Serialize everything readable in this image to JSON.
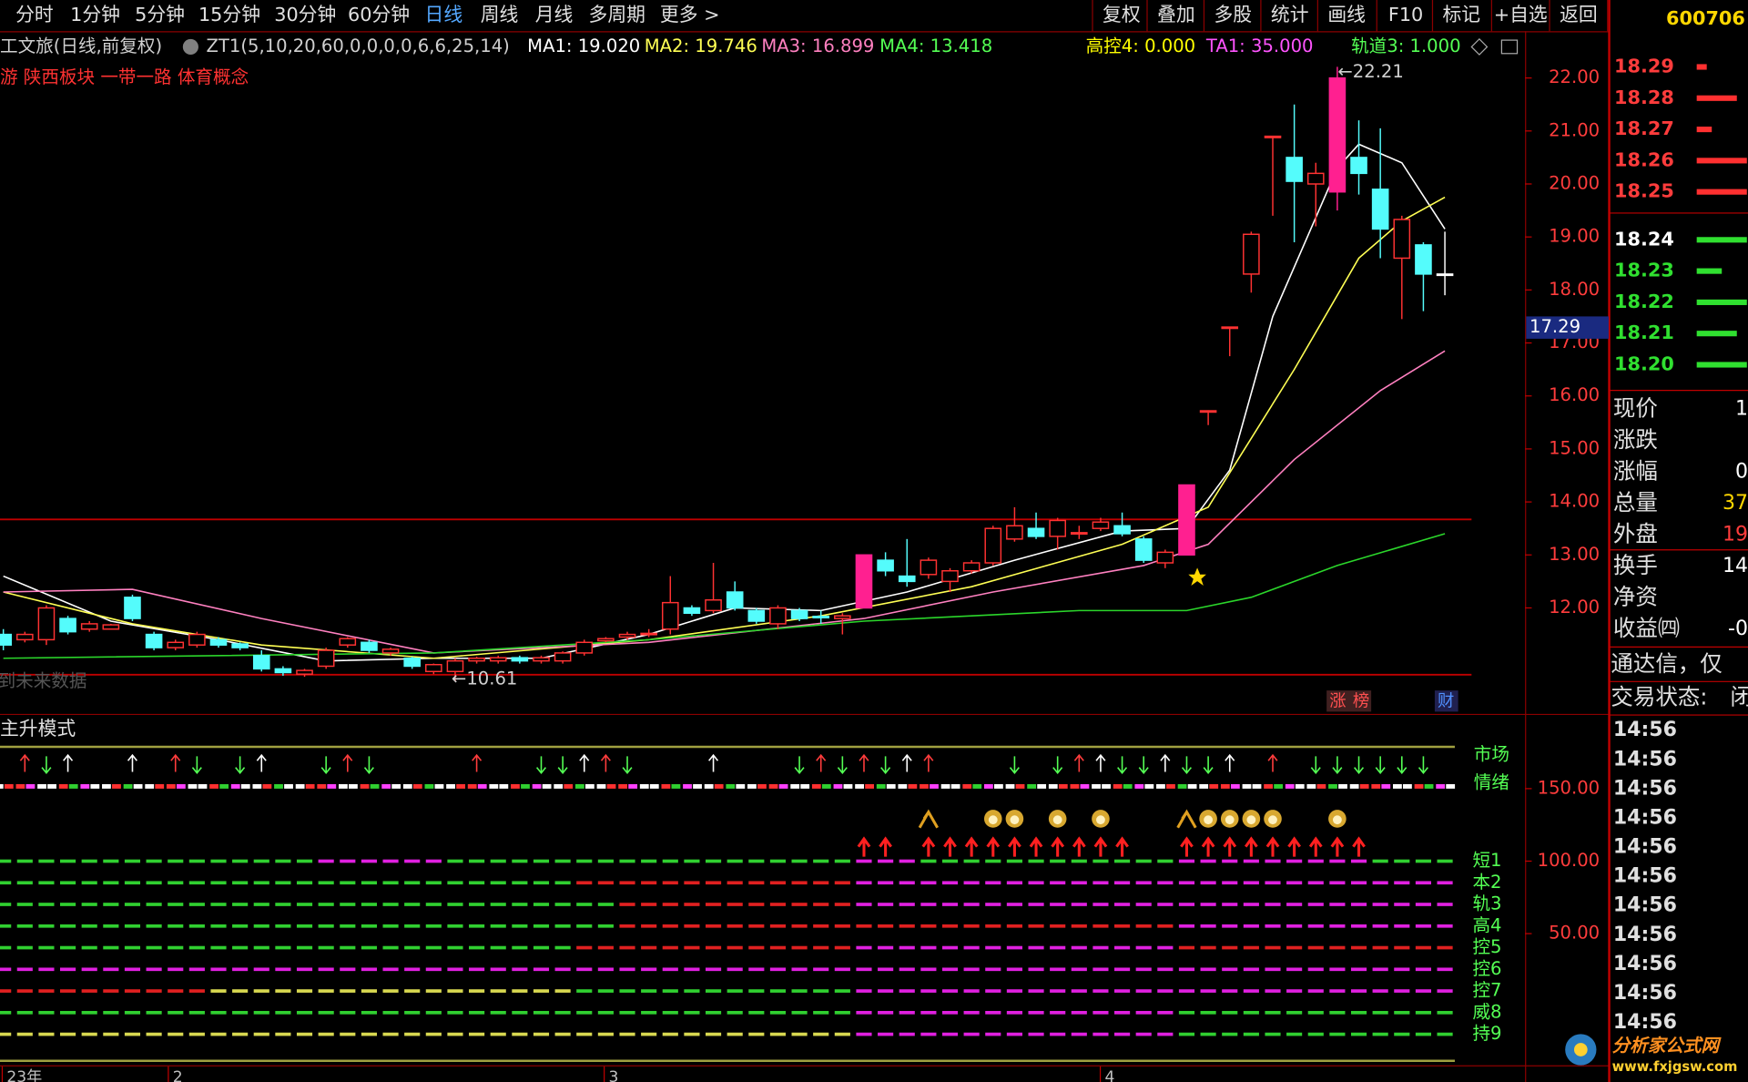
{
  "toolbar": {
    "left": [
      "分时",
      "1分钟",
      "5分钟",
      "15分钟",
      "30分钟",
      "60分钟",
      "日线",
      "周线",
      "月线",
      "多周期",
      "更多 >"
    ],
    "right": [
      "复权",
      "叠加",
      "多股",
      "统计",
      "画线",
      "F10",
      "标记",
      "+自选",
      "返回"
    ],
    "code": "600706"
  },
  "info": {
    "name": "工文旅(日线,前复权)",
    "formula": "ZT1(5,10,20,60,0,0,0,0,6,6,25,14)",
    "indicators": [
      {
        "label": "MA1: 19.020",
        "color": "#ffffff"
      },
      {
        "label": "MA2: 19.746",
        "color": "#ffff54"
      },
      {
        "label": "MA3: 16.899",
        "color": "#ff80c0"
      },
      {
        "label": "MA4: 13.418",
        "color": "#54ff54"
      },
      {
        "label": "高控4: 0.000",
        "color": "#ffff00"
      },
      {
        "label": "TA1: 35.000",
        "color": "#ff54ff"
      },
      {
        "label": "轨道3: 1.000",
        "color": "#54ff54"
      }
    ],
    "tags": "游 陕西板块 一带一路 体育概念"
  },
  "price_chart": {
    "ylim": [
      10.0,
      22.84
    ],
    "yticks": [
      {
        "value": 12,
        "label": "12.00"
      },
      {
        "value": 13,
        "label": "13.00"
      },
      {
        "value": 14,
        "label": "14.00"
      },
      {
        "value": 15,
        "label": "15.00"
      },
      {
        "value": 16,
        "label": "16.00"
      },
      {
        "value": 17,
        "label": "17.00"
      },
      {
        "value": 18,
        "label": "18.00"
      },
      {
        "value": 19,
        "label": "19.00"
      },
      {
        "value": 20,
        "label": "20.00"
      },
      {
        "value": 21,
        "label": "21.00"
      },
      {
        "value": 22,
        "label": "22.00"
      }
    ],
    "up_color": "#ff3232",
    "down_color": "#54fcfc",
    "candles": {
      "open": [
        11.5,
        11.4,
        11.4,
        11.8,
        11.6,
        11.6,
        12.2,
        11.5,
        11.25,
        11.3,
        11.4,
        11.32,
        11.1,
        10.85,
        10.75,
        10.9,
        11.3,
        11.35,
        11.15,
        11.05,
        10.8,
        10.8,
        11.0,
        11.0,
        11.06,
        11.0,
        11.0,
        11.15,
        11.38,
        11.45,
        11.5,
        11.6,
        12.0,
        11.95,
        12.3,
        11.95,
        11.7,
        11.95,
        11.84,
        11.8,
        12.0,
        12.9,
        12.6,
        12.63,
        12.5,
        12.7,
        12.85,
        13.3,
        13.5,
        13.35,
        13.4,
        13.5,
        13.55,
        13.3,
        12.85,
        13.0,
        15.72,
        17.3,
        18.3,
        20.9,
        20.5,
        20.0,
        19.85,
        20.5,
        19.9,
        18.6,
        18.85,
        18.3
      ],
      "high": [
        11.6,
        11.55,
        12.05,
        11.85,
        11.75,
        11.7,
        12.25,
        11.55,
        11.4,
        11.55,
        11.45,
        11.35,
        11.2,
        10.9,
        10.85,
        11.25,
        11.45,
        11.4,
        11.25,
        11.08,
        10.95,
        11.05,
        11.08,
        11.1,
        11.1,
        11.1,
        11.18,
        11.4,
        11.45,
        11.55,
        11.6,
        12.6,
        12.05,
        12.85,
        12.5,
        12.0,
        12.05,
        12.0,
        11.95,
        11.9,
        13.0,
        13.05,
        13.3,
        12.95,
        12.75,
        12.9,
        13.55,
        13.9,
        13.8,
        13.7,
        13.55,
        13.7,
        13.8,
        13.35,
        13.1,
        14.32,
        15.73,
        17.3,
        19.1,
        20.9,
        21.5,
        20.4,
        22.21,
        21.2,
        21.05,
        19.4,
        18.9,
        19.1
      ],
      "low": [
        11.2,
        11.35,
        11.3,
        11.5,
        11.55,
        11.6,
        11.75,
        11.2,
        11.2,
        11.25,
        11.25,
        11.2,
        10.8,
        10.72,
        10.7,
        10.85,
        11.25,
        11.15,
        11.1,
        10.85,
        10.75,
        10.61,
        10.95,
        10.95,
        10.95,
        10.95,
        10.95,
        11.1,
        11.35,
        11.4,
        11.45,
        11.5,
        11.85,
        11.9,
        11.95,
        11.7,
        11.6,
        11.75,
        11.7,
        11.5,
        12.0,
        12.6,
        12.4,
        12.55,
        12.3,
        12.65,
        12.8,
        13.25,
        13.3,
        13.1,
        13.3,
        13.45,
        13.35,
        12.85,
        12.75,
        13.0,
        15.45,
        16.75,
        17.95,
        19.4,
        18.9,
        19.2,
        19.5,
        19.8,
        18.6,
        17.45,
        17.6,
        17.9
      ],
      "close": [
        11.3,
        11.5,
        12.0,
        11.55,
        11.7,
        11.68,
        11.8,
        11.25,
        11.35,
        11.5,
        11.3,
        11.25,
        10.85,
        10.78,
        10.82,
        11.2,
        11.42,
        11.2,
        11.22,
        10.9,
        10.93,
        11.0,
        11.05,
        11.06,
        11.0,
        11.06,
        11.15,
        11.35,
        11.42,
        11.5,
        11.52,
        12.1,
        11.9,
        12.15,
        12.0,
        11.75,
        12.0,
        11.8,
        11.83,
        11.85,
        13.0,
        12.7,
        12.5,
        12.9,
        12.7,
        12.85,
        13.5,
        13.55,
        13.35,
        13.65,
        13.42,
        13.62,
        13.4,
        12.9,
        13.05,
        14.32,
        15.72,
        17.3,
        19.05,
        20.9,
        20.05,
        20.2,
        22.0,
        20.2,
        19.15,
        19.33,
        18.3,
        18.3
      ]
    },
    "ma": [
      {
        "color": "#ffffff",
        "x": [
          0,
          5,
          10,
          15,
          20,
          25,
          30,
          34,
          38,
          42,
          47,
          52,
          55,
          57,
          59,
          62,
          63,
          65,
          67
        ],
        "values": [
          12.6,
          11.75,
          11.4,
          11.0,
          11.05,
          11.05,
          11.5,
          12.0,
          11.95,
          12.3,
          12.9,
          13.45,
          13.5,
          14.6,
          17.5,
          20.3,
          20.75,
          20.4,
          19.15
        ]
      },
      {
        "color": "#ffff54",
        "x": [
          0,
          6,
          12,
          20,
          30,
          38,
          45,
          52,
          56,
          60,
          63,
          65,
          67
        ],
        "values": [
          12.3,
          11.7,
          11.3,
          11.05,
          11.4,
          11.85,
          12.4,
          13.2,
          13.9,
          16.5,
          18.6,
          19.3,
          19.75
        ]
      },
      {
        "color": "#ff80c0",
        "x": [
          0,
          6,
          12,
          20,
          30,
          40,
          46,
          53,
          56,
          60,
          64,
          67
        ],
        "values": [
          12.3,
          12.35,
          11.8,
          11.15,
          11.35,
          11.8,
          12.3,
          12.8,
          13.2,
          14.8,
          16.1,
          16.85
        ]
      },
      {
        "color": "#2bd62b",
        "x": [
          0,
          20,
          30,
          40,
          50,
          55,
          58,
          62,
          67
        ],
        "values": [
          11.05,
          11.15,
          11.4,
          11.75,
          11.95,
          11.95,
          12.2,
          12.8,
          13.4
        ]
      }
    ],
    "ref_lines": [
      13.67,
      10.74
    ],
    "current_price": 17.29,
    "annotations": [
      {
        "text": "←10.61",
        "value": 10.61
      },
      {
        "text": "←22.21",
        "value": 22.21
      }
    ],
    "future_note": "到未来数据",
    "badges": [
      "涨",
      "榜",
      "财"
    ],
    "x_labels": [
      "23年",
      "2",
      "3",
      "4"
    ]
  },
  "indicator_panel": {
    "title": "主升模式",
    "ylim": [
      -40.8,
      197.7
    ],
    "yticks": [
      {
        "value": 150,
        "label": "150.00"
      },
      {
        "value": 100,
        "label": "100.00"
      },
      {
        "value": 50,
        "label": "50.00"
      }
    ],
    "signal_labels": [
      "市场",
      "情绪"
    ],
    "row_labels": [
      "短1",
      "本2",
      "轨3",
      "高4",
      "控5",
      "控6",
      "控7",
      "威8",
      "持9"
    ]
  },
  "side_panel": {
    "order_book": {
      "prices": [
        18.29,
        18.28,
        18.27,
        18.26,
        18.25,
        18.24,
        18.23,
        18.22,
        18.21,
        18.2
      ],
      "price_labels": [
        "18.29",
        "18.28",
        "18.27",
        "18.26",
        "18.25",
        "18.24",
        "18.23",
        "18.22",
        "18.21",
        "18.20"
      ],
      "volumes": [
        1,
        4,
        1.5,
        5,
        5,
        5,
        2.5,
        5,
        4,
        5
      ]
    },
    "quote": [
      {
        "label": "现价",
        "value": "1"
      },
      {
        "label": "涨跌",
        "value": ""
      },
      {
        "label": "涨幅",
        "value": "0"
      },
      {
        "label": "总量",
        "value": "37"
      },
      {
        "label": "外盘",
        "value": "19"
      },
      {
        "label": "换手",
        "value": "14"
      },
      {
        "label": "净资",
        "value": ""
      },
      {
        "label": "收益㈣",
        "value": "-0"
      }
    ],
    "notice": "通达信，仅",
    "status_label": "交易状态:",
    "status_value": "闭",
    "times": [
      "14:56",
      "14:56",
      "14:56",
      "14:56",
      "14:56",
      "14:56",
      "14:56",
      "14:56",
      "14:56",
      "14:56",
      "14:56"
    ]
  },
  "watermark": {
    "name": "分析家公式网",
    "url": "www.fxjgsw.com"
  }
}
